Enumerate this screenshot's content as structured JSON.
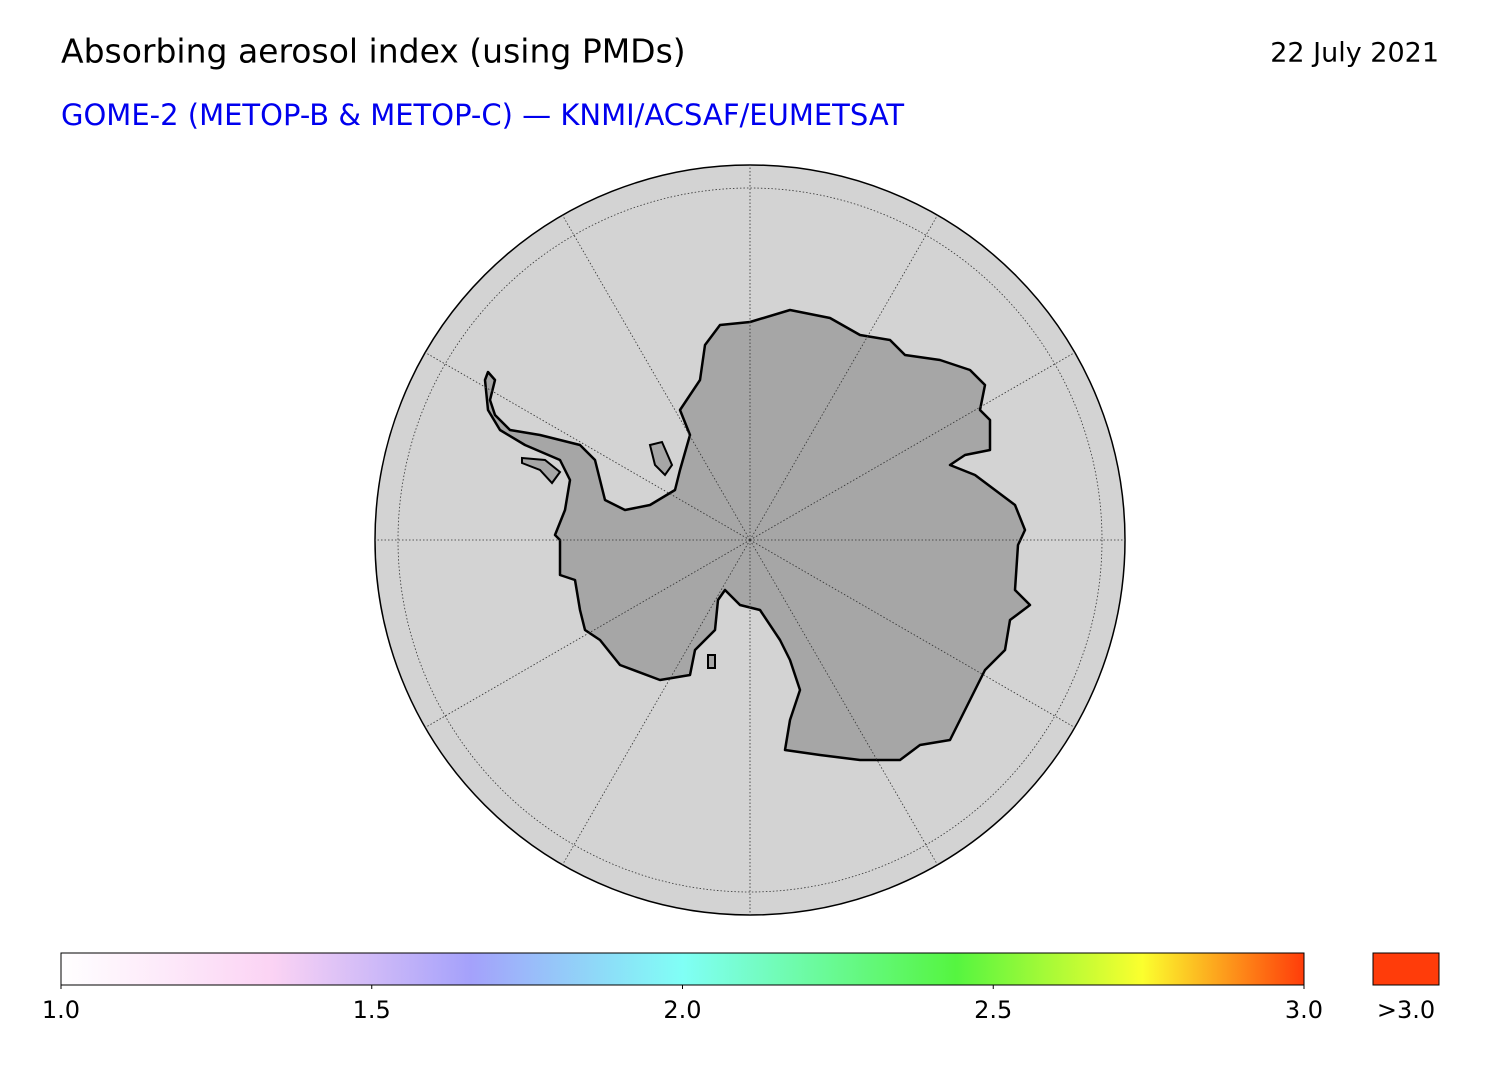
{
  "header": {
    "title": "Absorbing aerosol index (using PMDs)",
    "date": "22 July 2021",
    "subtitle": "GOME-2 (METOP-B & METOP-C) — KNMI/ACSAF/EUMETSAT"
  },
  "colorbar": {
    "range": [
      1,
      3
    ],
    "ticks": [
      {
        "value": 1,
        "label": "1.0"
      },
      {
        "value": 1.5,
        "label": "1.5"
      },
      {
        "value": 2,
        "label": "2.0"
      },
      {
        "value": 2.5,
        "label": "2.5"
      },
      {
        "value": 3,
        "label": "3.0"
      }
    ],
    "overflow_label": ">3.0",
    "overflow_color": "#ff3c0a"
  }
}
